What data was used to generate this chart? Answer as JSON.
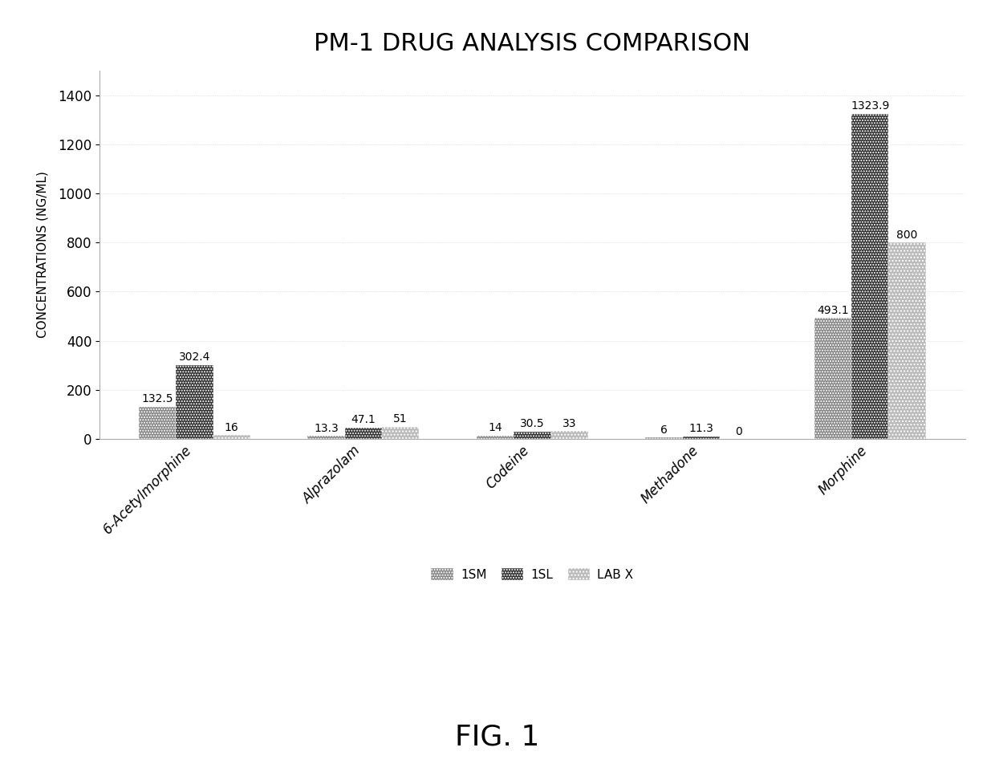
{
  "title": "PM-1 DRUG ANALYSIS COMPARISON",
  "ylabel": "CONCENTRATIONS (NG/ML)",
  "categories": [
    "6-Acetylmorphine",
    "Alprazolam",
    "Codeine",
    "Methadone",
    "Morphine"
  ],
  "series": {
    "1SM": [
      132.5,
      13.3,
      14.0,
      6.0,
      493.1
    ],
    "1SL": [
      302.4,
      47.1,
      30.5,
      11.3,
      1323.9
    ],
    "LAB X": [
      16,
      51,
      33,
      0,
      800
    ]
  },
  "colors": {
    "1SM": "#888888",
    "1SL": "#333333",
    "LAB X": "#bbbbbb"
  },
  "hatches": {
    "1SM": "....",
    "1SL": "....",
    "LAB X": "...."
  },
  "ylim": [
    0,
    1500
  ],
  "yticks": [
    0,
    200,
    400,
    600,
    800,
    1000,
    1200,
    1400
  ],
  "fig_caption": "FIG. 1",
  "background_color": "#ffffff",
  "bar_width": 0.22,
  "legend_labels": [
    "1SM",
    "1SL",
    "LAB X"
  ],
  "label_fontsize": 10,
  "title_fontsize": 22,
  "ylabel_fontsize": 11,
  "tick_fontsize": 12,
  "legend_fontsize": 11,
  "caption_fontsize": 26
}
